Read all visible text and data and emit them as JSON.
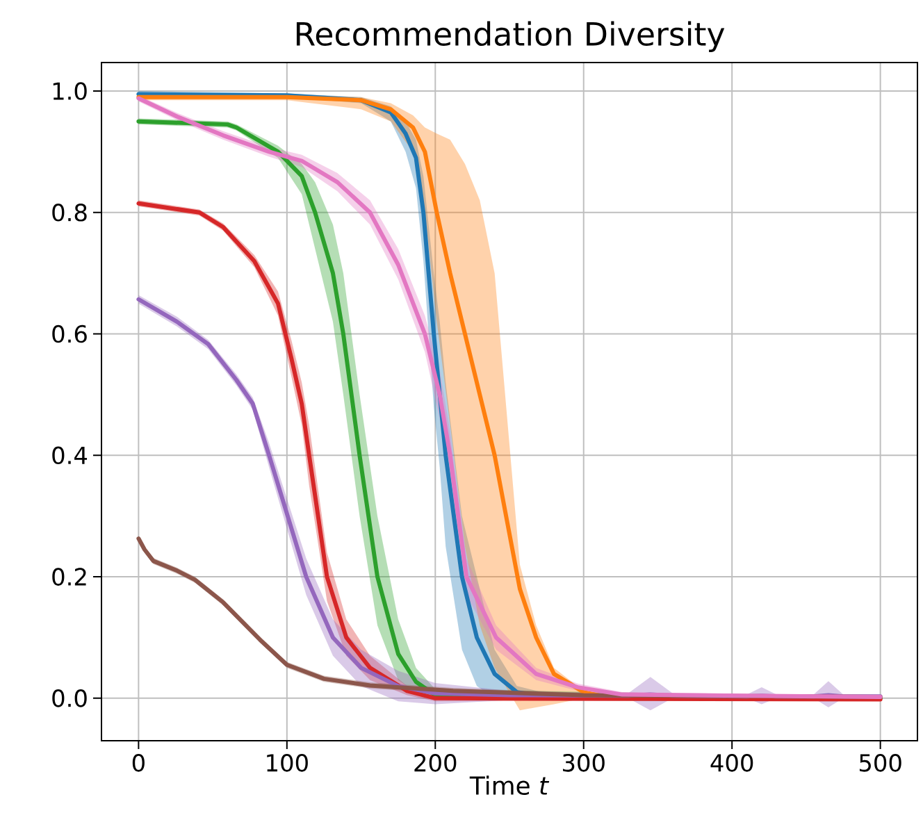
{
  "chart_data": {
    "type": "line",
    "title": "Recommendation Diversity",
    "xlabel": "Time *t*",
    "xlim": [
      -25,
      525
    ],
    "ylim": [
      -0.07,
      1.047
    ],
    "xticks": [
      0,
      100,
      200,
      300,
      400,
      500
    ],
    "yticks": [
      {
        "value": 0,
        "label": "0.0"
      },
      {
        "value": 0.2,
        "label": "0.2"
      },
      {
        "value": 0.4,
        "label": "0.4"
      },
      {
        "value": 0.6,
        "label": "0.6"
      },
      {
        "value": 0.8,
        "label": "0.8"
      },
      {
        "value": 1.0,
        "label": "1.0"
      }
    ],
    "grid": true,
    "marker": "none",
    "line_style": "solid",
    "series": [
      {
        "color": "#1f77b4",
        "x": [
          0,
          100,
          150,
          170,
          180,
          187,
          192,
          199,
          203,
          207,
          218,
          228,
          240,
          255,
          280,
          500
        ],
        "values": [
          0.995,
          0.993,
          0.985,
          0.965,
          0.93,
          0.89,
          0.8,
          0.6,
          0.5,
          0.4,
          0.2,
          0.1,
          0.04,
          0.01,
          0,
          0
        ],
        "lower": [
          0.99,
          0.99,
          0.98,
          0.95,
          0.9,
          0.84,
          0.72,
          0.48,
          0.38,
          0.25,
          0.08,
          0.02,
          0,
          -0.003,
          -0.003,
          0
        ],
        "upper": [
          1.0,
          0.996,
          0.99,
          0.975,
          0.95,
          0.92,
          0.86,
          0.7,
          0.62,
          0.52,
          0.3,
          0.2,
          0.08,
          0.02,
          0.005,
          0.002
        ]
      },
      {
        "color": "#ff7f0e",
        "x": [
          0,
          100,
          150,
          170,
          185,
          193,
          201,
          210,
          220,
          230,
          240,
          257,
          268,
          280,
          300,
          320,
          500
        ],
        "values": [
          0.99,
          0.99,
          0.985,
          0.97,
          0.94,
          0.9,
          0.8,
          0.7,
          0.6,
          0.5,
          0.4,
          0.18,
          0.1,
          0.04,
          0.01,
          0,
          0
        ],
        "lower": [
          0.985,
          0.985,
          0.97,
          0.95,
          0.9,
          0.8,
          0.62,
          0.45,
          0.25,
          0.12,
          0.05,
          -0.02,
          -0.015,
          -0.01,
          0,
          0,
          0
        ],
        "upper": [
          0.995,
          0.995,
          0.99,
          0.98,
          0.96,
          0.94,
          0.93,
          0.92,
          0.88,
          0.82,
          0.7,
          0.22,
          0.12,
          0.05,
          0.012,
          0.003,
          0.002
        ]
      },
      {
        "color": "#2ca02c",
        "x": [
          0,
          60,
          66,
          94,
          110,
          119,
          131,
          138,
          149,
          161,
          175,
          187,
          200,
          500
        ],
        "values": [
          0.95,
          0.945,
          0.94,
          0.9,
          0.86,
          0.8,
          0.7,
          0.6,
          0.4,
          0.2,
          0.073,
          0.027,
          0.005,
          0
        ],
        "lower": [
          0.945,
          0.94,
          0.935,
          0.89,
          0.83,
          0.74,
          0.62,
          0.5,
          0.3,
          0.12,
          0.03,
          0.01,
          0,
          0
        ],
        "upper": [
          0.955,
          0.95,
          0.945,
          0.91,
          0.88,
          0.85,
          0.78,
          0.7,
          0.5,
          0.3,
          0.13,
          0.05,
          0.015,
          0.002
        ]
      },
      {
        "color": "#d62728",
        "x": [
          0,
          41,
          57,
          78,
          94,
          103,
          110,
          115,
          127,
          140,
          156,
          181,
          200,
          500
        ],
        "values": [
          0.815,
          0.8,
          0.776,
          0.72,
          0.65,
          0.56,
          0.485,
          0.4,
          0.2,
          0.1,
          0.05,
          0.012,
          0,
          -0.002
        ],
        "lower": [
          0.81,
          0.795,
          0.77,
          0.71,
          0.63,
          0.53,
          0.45,
          0.35,
          0.16,
          0.07,
          0.03,
          0.005,
          -0.005,
          -0.004
        ],
        "upper": [
          0.82,
          0.805,
          0.782,
          0.73,
          0.67,
          0.59,
          0.52,
          0.45,
          0.24,
          0.13,
          0.07,
          0.02,
          0.005,
          0
        ]
      },
      {
        "color": "#9467bd",
        "x": [
          0,
          26,
          47,
          66,
          77,
          88,
          113,
          131,
          150,
          175,
          200,
          250,
          330,
          345,
          360,
          410,
          420,
          430,
          455,
          465,
          475,
          500
        ],
        "values": [
          0.657,
          0.62,
          0.583,
          0.524,
          0.485,
          0.4,
          0.2,
          0.1,
          0.05,
          0.02,
          0.008,
          0.005,
          0.004,
          0.006,
          0.004,
          0.003,
          0.004,
          0.003,
          0.003,
          0.005,
          0.003,
          0.003
        ],
        "lower": [
          0.65,
          0.612,
          0.575,
          0.515,
          0.475,
          0.38,
          0.17,
          0.07,
          0.02,
          -0.005,
          -0.01,
          -0.003,
          0,
          -0.02,
          0,
          0,
          -0.01,
          0,
          0,
          -0.015,
          0,
          0
        ],
        "upper": [
          0.664,
          0.628,
          0.59,
          0.533,
          0.495,
          0.42,
          0.23,
          0.13,
          0.08,
          0.045,
          0.025,
          0.012,
          0.008,
          0.035,
          0.008,
          0.006,
          0.018,
          0.006,
          0.006,
          0.028,
          0.006,
          0.006
        ]
      },
      {
        "color": "#8c564b",
        "x": [
          0,
          4,
          10,
          26,
          38,
          57,
          82,
          100,
          125,
          156,
          212,
          300,
          500
        ],
        "values": [
          0.263,
          0.245,
          0.226,
          0.21,
          0.195,
          0.158,
          0.096,
          0.055,
          0.032,
          0.021,
          0.012,
          0.005,
          0.002
        ],
        "lower": [
          0.258,
          0.24,
          0.221,
          0.205,
          0.19,
          0.153,
          0.091,
          0.05,
          0.027,
          0.016,
          0.007,
          0.001,
          0
        ],
        "upper": [
          0.268,
          0.25,
          0.231,
          0.215,
          0.2,
          0.163,
          0.101,
          0.06,
          0.037,
          0.026,
          0.017,
          0.009,
          0.004
        ]
      },
      {
        "color": "#e377c2",
        "x": [
          0,
          26,
          57,
          88,
          110,
          134,
          156,
          175,
          193,
          203,
          210,
          221,
          241,
          268,
          296,
          326,
          500
        ],
        "values": [
          0.988,
          0.958,
          0.927,
          0.9,
          0.885,
          0.85,
          0.8,
          0.714,
          0.6,
          0.5,
          0.4,
          0.2,
          0.1,
          0.04,
          0.018,
          0.006,
          0.002
        ],
        "lower": [
          0.983,
          0.952,
          0.92,
          0.892,
          0.875,
          0.835,
          0.78,
          0.69,
          0.57,
          0.46,
          0.36,
          0.17,
          0.08,
          0.03,
          0.012,
          0.002,
          0
        ],
        "upper": [
          0.993,
          0.964,
          0.934,
          0.908,
          0.895,
          0.865,
          0.82,
          0.74,
          0.63,
          0.54,
          0.44,
          0.23,
          0.12,
          0.05,
          0.024,
          0.01,
          0.004
        ]
      }
    ]
  }
}
